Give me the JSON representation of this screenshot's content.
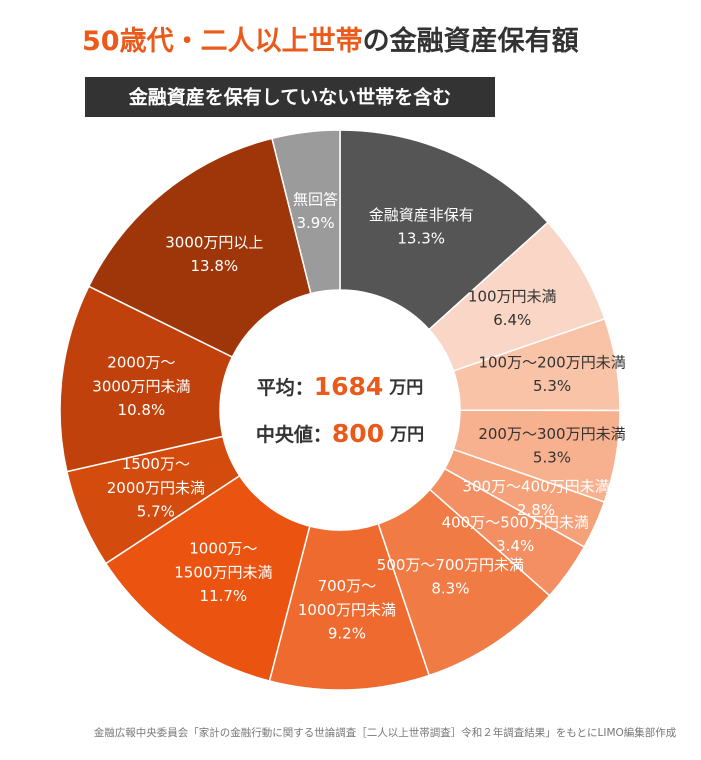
{
  "chart_data": {
    "type": "donut",
    "title_parts": [
      "50歳代・二人以上世帯",
      "の金融資産保有額"
    ],
    "subtitle": "金融資産を保有していない世帯を含む",
    "categories": [
      "金融資産非保有",
      "100万円未満",
      "100万～200万円未満",
      "200万～300万円未満",
      "300万～400万円未満",
      "400万～500万円未満",
      "500万～700万円未満",
      "700万～1000万円未満",
      "1000万～1500万円未満",
      "1500万～2000万円未満",
      "2000万～3000万円未満",
      "3000万円以上",
      "無回答"
    ],
    "values": [
      13.3,
      6.4,
      5.3,
      5.3,
      2.8,
      3.4,
      8.3,
      9.2,
      11.7,
      5.7,
      10.8,
      13.8,
      3.9
    ],
    "value_labels": [
      "13.3%",
      "6.4%",
      "5.3%",
      "5.3%",
      "2.8%",
      "3.4%",
      "8.3%",
      "9.2%",
      "11.7%",
      "5.7%",
      "10.8%",
      "13.8%",
      "3.9%"
    ],
    "colors": [
      "#555555",
      "#fad6c6",
      "#f9c3a8",
      "#f7b18f",
      "#f5a17a",
      "#f38f62",
      "#f07b45",
      "#ee6a2e",
      "#ea5410",
      "#d44b0e",
      "#c0410b",
      "#9f3609",
      "#9b9b9b"
    ],
    "center_stats": [
      {
        "label": "平均：",
        "value": 1684,
        "unit": "万円"
      },
      {
        "label": "中央値：",
        "value": 800,
        "unit": "万円"
      }
    ],
    "source": "金融広報中央委員会「家計の金融行動に関する世論調査［二人以上世帯調査］令和２年調査結果」をもとにLIMO編集部作成"
  }
}
